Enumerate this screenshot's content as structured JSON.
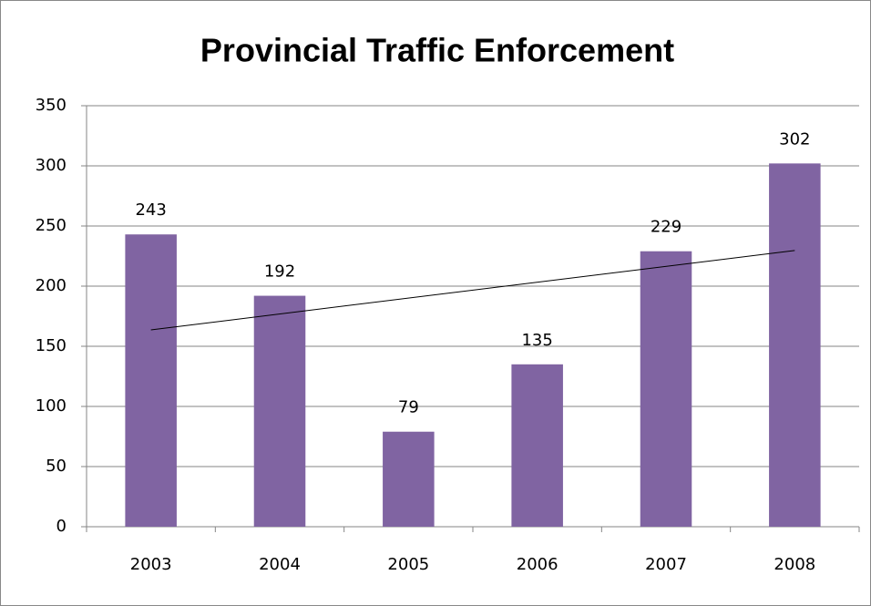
{
  "chart_data": {
    "type": "bar",
    "title": "Provincial Traffic Enforcement",
    "categories": [
      "2003",
      "2004",
      "2005",
      "2006",
      "2007",
      "2008"
    ],
    "values": [
      243,
      192,
      79,
      135,
      229,
      302
    ],
    "color": "#8064a2",
    "ylim": [
      0,
      350
    ],
    "yticks": [
      0,
      50,
      100,
      150,
      200,
      250,
      300,
      350
    ],
    "grid": true,
    "trendline": "linear"
  }
}
